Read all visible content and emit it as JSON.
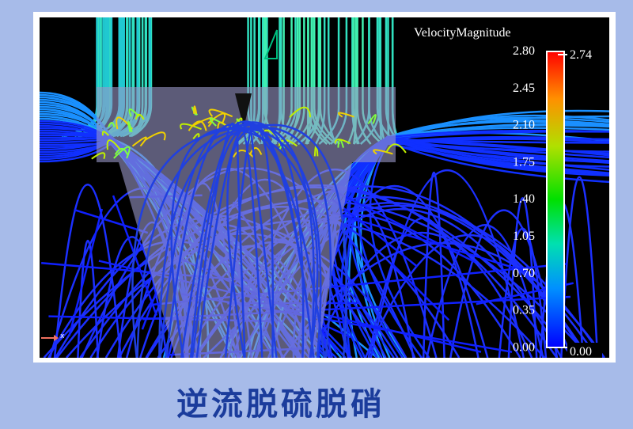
{
  "visualization": {
    "colorbar": {
      "title": "VelocityMagnitude",
      "ticks": [
        "2.80",
        "2.45",
        "2.10",
        "1.75",
        "1.40",
        "1.05",
        "0.70",
        "0.35",
        "0.00"
      ],
      "max_marker": "2.74",
      "min_marker": "0.00",
      "colors": [
        "#0000ff",
        "#00a0ff",
        "#00e0c0",
        "#00e000",
        "#c0e000",
        "#ff9000",
        "#ff0000"
      ]
    },
    "axis_indicator": "x",
    "background": "#000000"
  },
  "caption": "逆流脱硫脱硝",
  "page_background": "#a7bbe9"
}
